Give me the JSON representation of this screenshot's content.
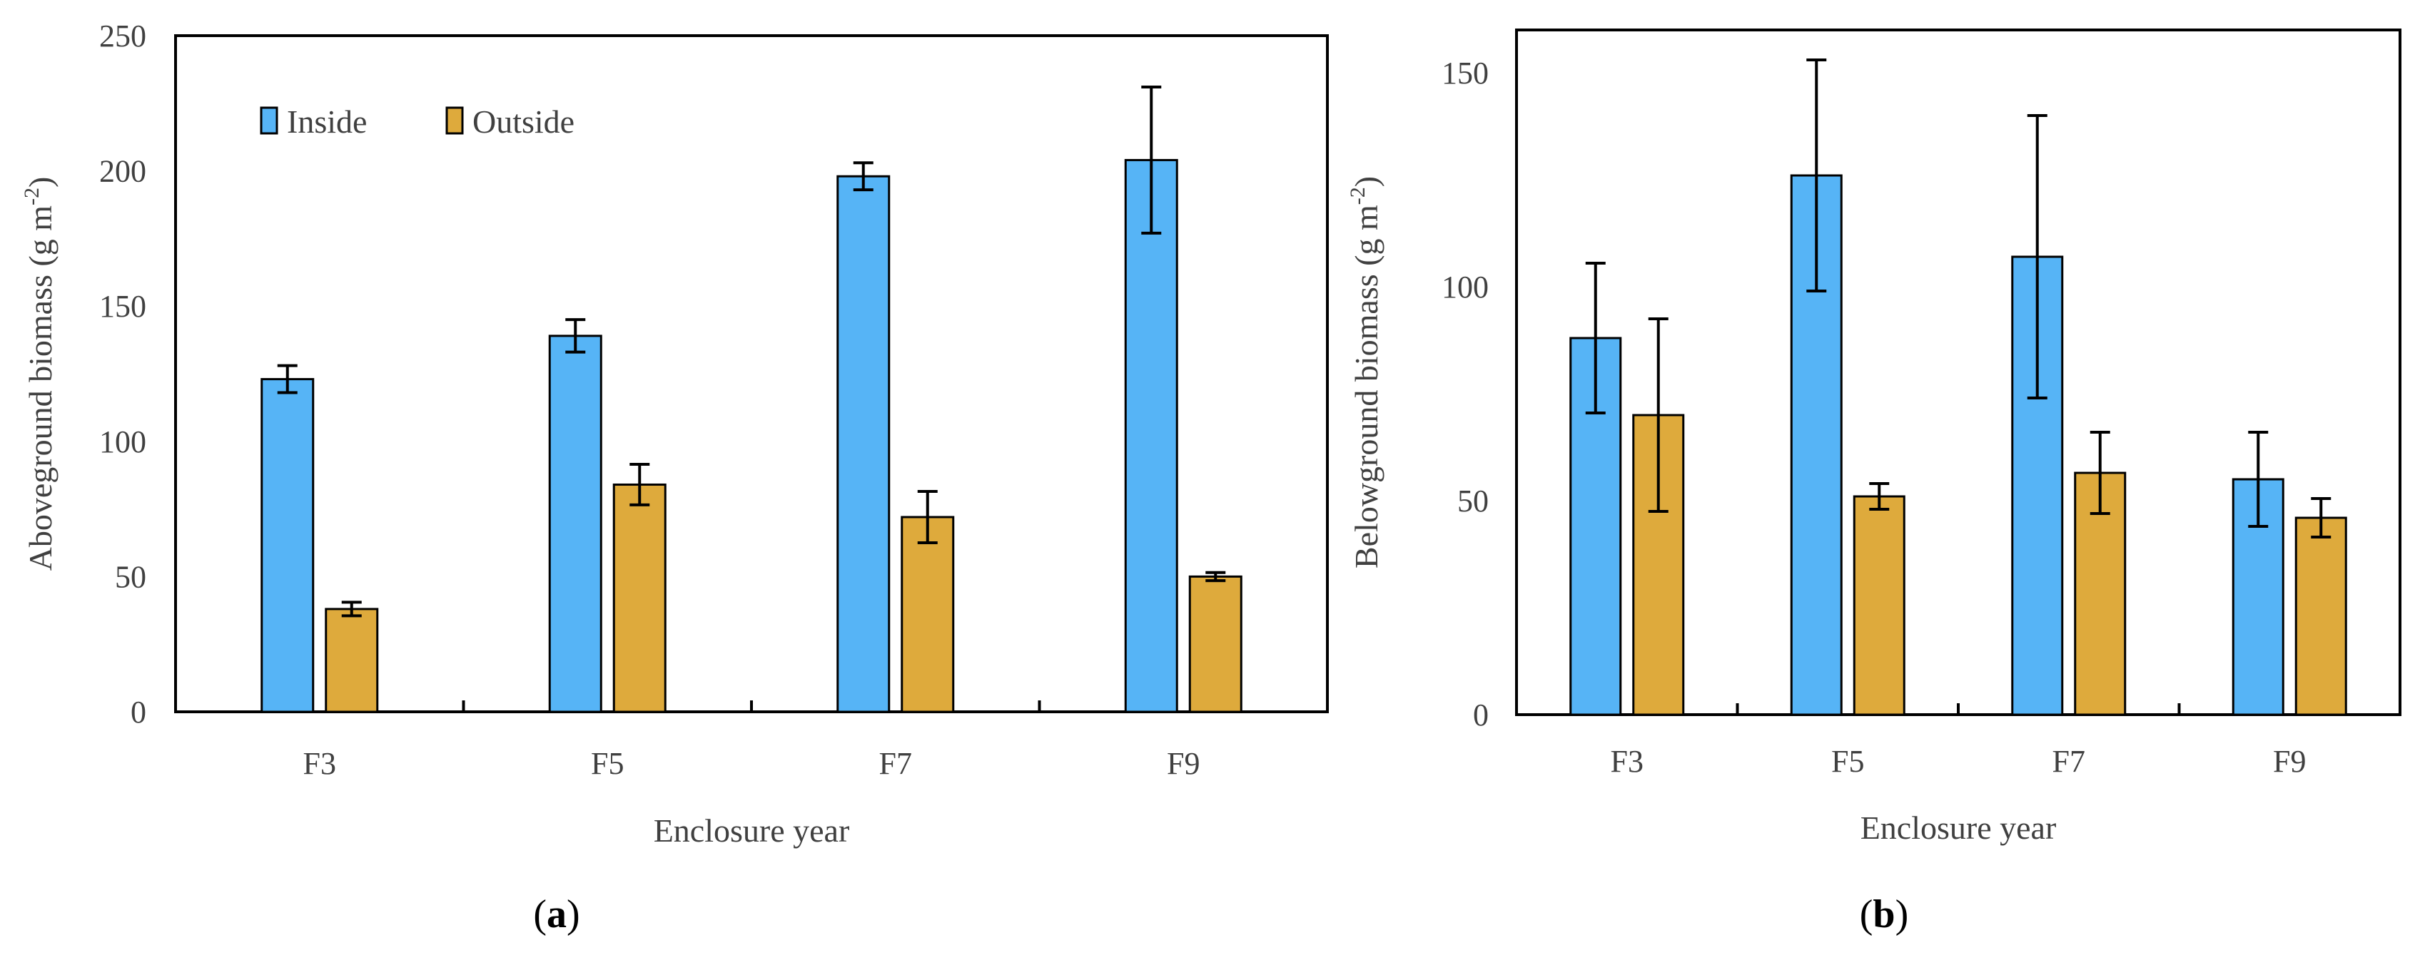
{
  "chart_data": [
    {
      "panel": "a",
      "panel_label_open": "(",
      "panel_label_letter": "a",
      "panel_label_close": ")",
      "type": "bar",
      "title": "",
      "xlabel": "Enclosure year",
      "ylabel_main": "Aboveground biomass (g m",
      "ylabel_sup": "-2",
      "ylabel_close": ")",
      "ylim": [
        0,
        250
      ],
      "yticks": [
        0,
        50,
        100,
        150,
        200,
        250
      ],
      "categories": [
        "F3",
        "F5",
        "F7",
        "F9"
      ],
      "legend": {
        "position": "top-left"
      },
      "series": [
        {
          "name": "Inside",
          "color": "#56b4f6",
          "values": [
            123,
            139,
            198,
            204
          ],
          "errors": [
            5,
            6,
            5,
            27
          ]
        },
        {
          "name": "Outside",
          "color": "#deaa3c",
          "values": [
            38,
            84,
            72,
            50
          ],
          "errors": [
            2.5,
            7.5,
            9.5,
            1.5
          ]
        }
      ]
    },
    {
      "panel": "b",
      "panel_label_open": "(",
      "panel_label_letter": "b",
      "panel_label_close": ")",
      "type": "bar",
      "title": "",
      "xlabel": "Enclosure year",
      "ylabel_main": "Belowground biomass (g m",
      "ylabel_sup": "-2",
      "ylabel_close": ")",
      "ylim": [
        0,
        160
      ],
      "yticks": [
        0,
        50,
        100,
        150
      ],
      "categories": [
        "F3",
        "F5",
        "F7",
        "F9"
      ],
      "legend": null,
      "series": [
        {
          "name": "Inside",
          "color": "#56b4f6",
          "values": [
            88,
            126,
            107,
            55
          ],
          "errors": [
            17.5,
            27,
            33,
            11
          ]
        },
        {
          "name": "Outside",
          "color": "#deaa3c",
          "values": [
            70,
            51,
            56.5,
            46
          ],
          "errors": [
            22.5,
            3,
            9.5,
            4.5
          ]
        }
      ]
    }
  ]
}
